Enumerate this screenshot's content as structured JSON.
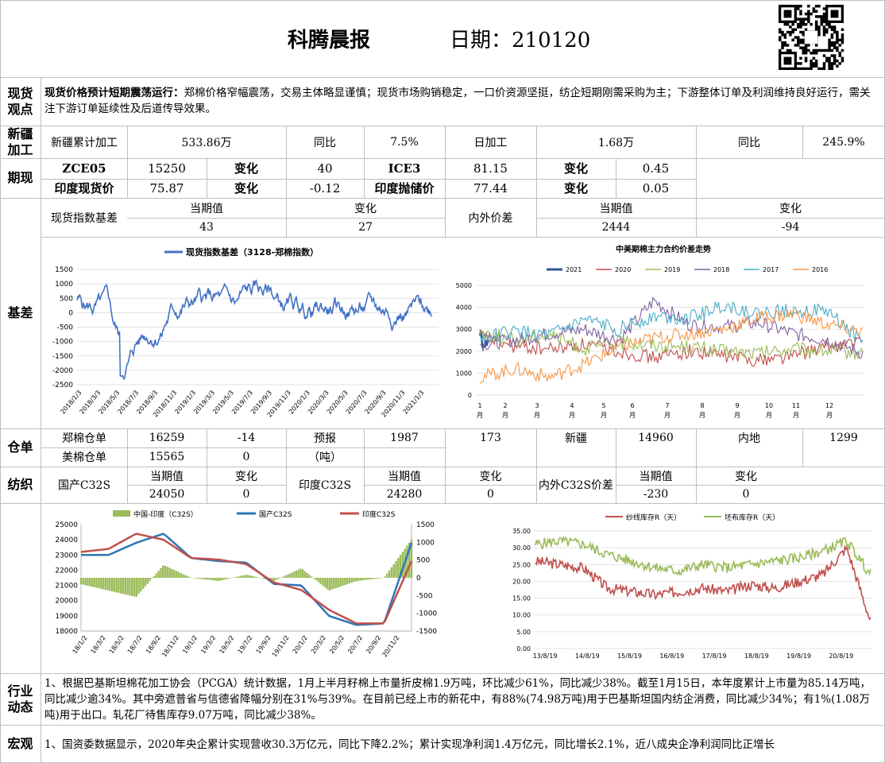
{
  "header": {
    "title": "科腾晨报",
    "date": "日期：210120"
  },
  "spot_view": {
    "label": "现货\n观点",
    "headline": "现货价格预计短期震荡运行：",
    "body": "郑棉价格窄幅震荡，交易主体略显谨慎；现货市场购销稳定，一口价资源坚挺，纺企短期刚需采购为主；下游整体订单及利润维持良好运行，需关注下游订单延续性及后道传导效果。"
  },
  "xinjiang": {
    "label": "新疆\n加工",
    "cum_label": "新疆累计加工",
    "cum_value": "533.86万",
    "yoy1_label": "同比",
    "yoy1_value": "7.5%",
    "daily_label": "日加工",
    "daily_value": "1.68万",
    "yoy2_label": "同比",
    "yoy2_value": "245.9%"
  },
  "futures": {
    "label": "期现",
    "rows": [
      {
        "c1": "ZCE05",
        "v1": "15250",
        "ch1": "变化",
        "d1": "40",
        "c2": "ICE3",
        "v2": "81.15",
        "ch2": "变化",
        "d2": "0.45"
      },
      {
        "c1": "印度现货价",
        "v1": "75.87",
        "ch1": "变化",
        "d1": "-0.12",
        "c2": "印度抛储价",
        "v2": "77.44",
        "ch2": "变化",
        "d2": "0.05"
      }
    ]
  },
  "basis": {
    "label": "基差",
    "spot_index_label": "现货指数基差",
    "cur_label": "当期值",
    "chg_label": "变化",
    "spot_index_cur": "43",
    "spot_index_chg": "27",
    "inout_label": "内外价差",
    "cur_label2": "当期值",
    "chg_label2": "变化",
    "inout_cur": "2444",
    "inout_chg": "-94",
    "chart1": {
      "legend": "现货指数基差（3128-郑棉指数）",
      "yticks": [
        "1500",
        "1000",
        "500",
        "0",
        "-500",
        "-1000",
        "-1500",
        "-2000",
        "-2500"
      ],
      "xticks": [
        "2018/1/3",
        "2018/3/3",
        "2018/5/3",
        "2018/7/3",
        "2018/9/3",
        "2018/11/3",
        "2019/1/3",
        "2019/3/3",
        "2019/5/3",
        "2019/7/3",
        "2019/9/3",
        "2019/11/3",
        "2020/1/3",
        "2020/3/3",
        "2020/5/3",
        "2020/7/3",
        "2020/9/3",
        "2020/11/3",
        "2021/1/3"
      ]
    },
    "chart2": {
      "title": "中美期棉主力合约价差走势",
      "legend": [
        "2021",
        "2020",
        "2019",
        "2018",
        "2017",
        "2016"
      ],
      "yticks": [
        "5000",
        "4000",
        "3000",
        "2000",
        "1000",
        "0"
      ],
      "xticks": [
        "1\n月",
        "2\n月",
        "3\n月",
        "4\n月",
        "5\n月",
        "6\n月",
        "7\n月",
        "8\n月",
        "9\n月",
        "10\n月",
        "11\n月",
        "12\n月"
      ]
    }
  },
  "warehouse": {
    "label": "仓单",
    "zheng_label": "郑棉仓单",
    "zheng_value": "16259",
    "zheng_chg": "-14",
    "us_label": "美棉仓单",
    "us_value": "15565",
    "us_chg": "0",
    "forecast_label": "预报",
    "forecast_unit": "（吨）",
    "forecast_value": "1987",
    "forecast_chg": "173",
    "xj_label": "新疆",
    "xj_value": "14960",
    "inland_label": "内地",
    "inland_value": "1299"
  },
  "spinning": {
    "label": "纺织",
    "dom_label": "国产C32S",
    "cur": "当期值",
    "chg": "变化",
    "dom_cur": "24050",
    "dom_chg": "0",
    "ind_label": "印度C32S",
    "ind_cur": "24280",
    "ind_chg": "0",
    "spread_label": "内外C32S价差",
    "spread_cur": "-230",
    "spread_chg": "0",
    "chart3": {
      "legend": [
        "中国-印度（C32S）",
        "国产C32S",
        "印度C32S"
      ],
      "yleft": [
        "25000",
        "24000",
        "23000",
        "22000",
        "21000",
        "20000",
        "19000",
        "18000"
      ],
      "yright": [
        "1500",
        "1000",
        "500",
        "0",
        "-500",
        "-1000",
        "-1500"
      ],
      "xticks": [
        "18/1/2",
        "18/3/2",
        "18/5/2",
        "18/7/2",
        "18/9/2",
        "18/11/2",
        "19/1/2",
        "19/3/2",
        "19/5/2",
        "19/7/2",
        "19/9/2",
        "19/11/2",
        "20/1/2",
        "20/3/2",
        "20/5/2",
        "20/7/2",
        "20/9/2",
        "20/11/2"
      ]
    },
    "chart4": {
      "legend": [
        "纱线库存R（天）",
        "坯布库存R（天）"
      ],
      "yticks": [
        "35.00",
        "30.00",
        "25.00",
        "20.00",
        "15.00",
        "10.00",
        "5.00",
        "0.00"
      ],
      "xticks": [
        "13/8/19",
        "14/8/19",
        "15/8/19",
        "16/8/19",
        "17/8/19",
        "18/8/19",
        "19/8/19",
        "20/8/19"
      ]
    }
  },
  "industry": {
    "label": "行业\n动态",
    "text": "1、根据巴基斯坦棉花加工协会（PCGA）统计数据，1月上半月籽棉上市量折皮棉1.9万吨，环比减少61%，同比减少38%。截至1月15日，本年度累计上市量为85.14万吨，同比减少逾34%。其中旁遮普省与信德省降幅分别在31%与39%。在目前已经上市的新花中，有88%(74.98万吨)用于巴基斯坦国内纺企消费，同比减少34%；有1%(1.08万吨)用于出口。轧花厂待售库存9.07万吨，同比减少38%。"
  },
  "macro": {
    "label": "宏观",
    "text": "1、国资委数据显示，2020年央企累计实现营收30.3万亿元，同比下降2.2%；累计实现净利润1.4万亿元，同比增长2.1%，近八成央企净利润同比正增长"
  },
  "colors": {
    "spot_basis": "#4472c4",
    "y2021": "#2e5597",
    "y2020": "#c0504d",
    "y2019": "#9bbb59",
    "y2018": "#8064a2",
    "y2017": "#4bacc6",
    "y2016": "#f79646",
    "bars": "#9bbb59",
    "dom": "#2e75b6",
    "ind": "#c0504d",
    "yarn": "#c0504d",
    "cloth": "#9bbb59"
  }
}
